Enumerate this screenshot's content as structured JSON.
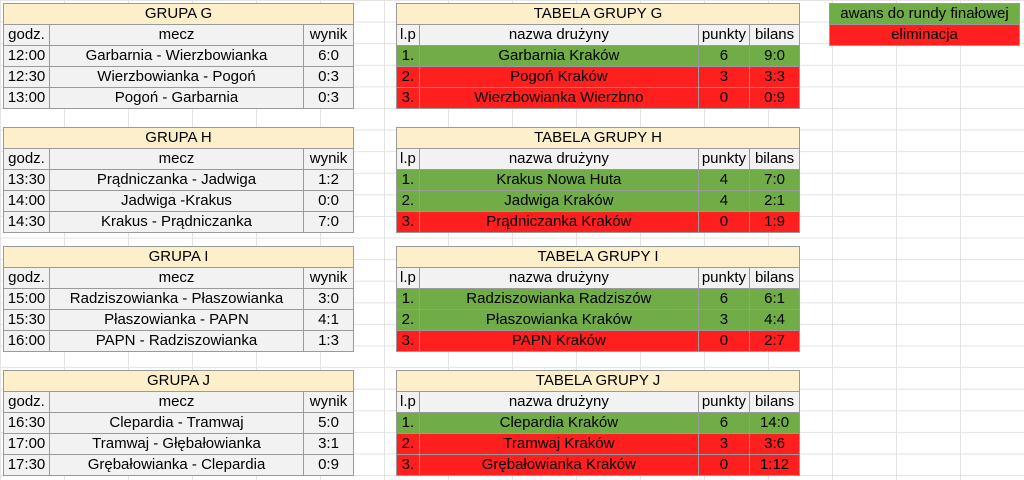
{
  "labels": {
    "godz": "godz.",
    "mecz": "mecz",
    "wynik": "wynik",
    "lp": "l.p",
    "team": "nazwa drużyny",
    "points": "punkty",
    "balance": "bilans"
  },
  "legend": {
    "advance": "awans do rundy finałowej",
    "elimination": "eliminacja",
    "advance_color": "#70ad47",
    "elimination_color": "#ff1f1f"
  },
  "groups": [
    {
      "title": "GRUPA G",
      "table_title": "TABELA GRUPY G",
      "matches": [
        {
          "time": "12:00",
          "match": "Garbarnia - Wierzbowianka",
          "score": "6:0"
        },
        {
          "time": "12:30",
          "match": "Wierzbowianka - Pogoń",
          "score": "0:3"
        },
        {
          "time": "13:00",
          "match": "Pogoń - Garbarnia",
          "score": "0:3"
        }
      ],
      "standings": [
        {
          "lp": "1.",
          "team": "Garbarnia Kraków",
          "points": "6",
          "balance": "9:0",
          "status": "advance"
        },
        {
          "lp": "2.",
          "team": "Pogoń Kraków",
          "points": "3",
          "balance": "3:3",
          "status": "elimination"
        },
        {
          "lp": "3.",
          "team": "Wierzbowianka Wierzbno",
          "points": "0",
          "balance": "0:9",
          "status": "elimination"
        }
      ]
    },
    {
      "title": "GRUPA H",
      "table_title": "TABELA GRUPY H",
      "matches": [
        {
          "time": "13:30",
          "match": "Prądniczanka - Jadwiga",
          "score": "1:2"
        },
        {
          "time": "14:00",
          "match": "Jadwiga -Krakus",
          "score": "0:0"
        },
        {
          "time": "14:30",
          "match": "Krakus - Prądniczanka",
          "score": "7:0"
        }
      ],
      "standings": [
        {
          "lp": "1.",
          "team": "Krakus Nowa Huta",
          "points": "4",
          "balance": "7:0",
          "status": "advance"
        },
        {
          "lp": "2.",
          "team": "Jadwiga Kraków",
          "points": "4",
          "balance": "2:1",
          "status": "advance"
        },
        {
          "lp": "3.",
          "team": "Prądniczanka Kraków",
          "points": "0",
          "balance": "1:9",
          "status": "elimination"
        }
      ]
    },
    {
      "title": "GRUPA I",
      "table_title": "TABELA GRUPY I",
      "matches": [
        {
          "time": "15:00",
          "match": "Radziszowianka - Płaszowianka",
          "score": "3:0"
        },
        {
          "time": "15:30",
          "match": "Płaszowianka - PAPN",
          "score": "4:1"
        },
        {
          "time": "16:00",
          "match": "PAPN - Radziszowianka",
          "score": "1:3"
        }
      ],
      "standings": [
        {
          "lp": "1.",
          "team": "Radziszowianka Radziszów",
          "points": "6",
          "balance": "6:1",
          "status": "advance"
        },
        {
          "lp": "2.",
          "team": "Płaszowianka Kraków",
          "points": "3",
          "balance": "4:4",
          "status": "advance"
        },
        {
          "lp": "3.",
          "team": "PAPN Kraków",
          "points": "0",
          "balance": "2:7",
          "status": "elimination"
        }
      ]
    },
    {
      "title": "GRUPA J",
      "table_title": "TABELA GRUPY J",
      "matches": [
        {
          "time": "16:30",
          "match": "Clepardia - Tramwaj",
          "score": "5:0"
        },
        {
          "time": "17:00",
          "match": "Tramwaj - Głębałowianka",
          "score": "3:1"
        },
        {
          "time": "17:30",
          "match": "Grębałowianka - Clepardia",
          "score": "0:9"
        }
      ],
      "standings": [
        {
          "lp": "1.",
          "team": "Clepardia Kraków",
          "points": "6",
          "balance": "14:0",
          "status": "advance"
        },
        {
          "lp": "2.",
          "team": "Tramwaj Kraków",
          "points": "3",
          "balance": "3:6",
          "status": "elimination"
        },
        {
          "lp": "3.",
          "team": "Grębałowianka Kraków",
          "points": "0",
          "balance": "1:12",
          "status": "elimination"
        }
      ]
    }
  ]
}
